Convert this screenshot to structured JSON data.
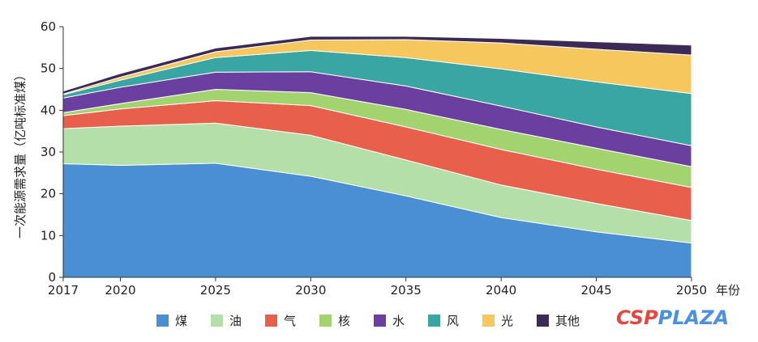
{
  "chart_data": {
    "type": "area",
    "stacked": true,
    "x": [
      2017,
      2020,
      2025,
      2030,
      2035,
      2040,
      2045,
      2050
    ],
    "x_tick_labels": [
      "2017",
      "2020",
      "2025",
      "2030",
      "2035",
      "2040",
      "2045",
      "2050"
    ],
    "xlabel": "年份",
    "ylabel": "一次能源需求量（亿吨标准煤）",
    "ylim": [
      0,
      60
    ],
    "y_ticks": [
      0,
      10,
      20,
      30,
      40,
      50,
      60
    ],
    "legend_position": "bottom",
    "series": [
      {
        "name": "煤",
        "color": "#4a8fd4",
        "values": [
          27.2,
          26.8,
          27.3,
          24.2,
          19.5,
          14.3,
          10.9,
          8.2
        ]
      },
      {
        "name": "油",
        "color": "#b5dfa8",
        "values": [
          8.4,
          9.4,
          9.6,
          9.8,
          8.6,
          7.8,
          6.8,
          5.4
        ]
      },
      {
        "name": "气",
        "color": "#e8604c",
        "values": [
          3.1,
          4.1,
          5.4,
          7.1,
          7.9,
          8.5,
          8.2,
          7.9
        ]
      },
      {
        "name": "核",
        "color": "#a3d36e",
        "values": [
          0.7,
          1.3,
          2.7,
          3.1,
          4.2,
          4.8,
          5.0,
          5.0
        ]
      },
      {
        "name": "水",
        "color": "#6a3fa0",
        "values": [
          3.5,
          3.9,
          4.1,
          5.0,
          5.6,
          5.6,
          5.1,
          5.0
        ]
      },
      {
        "name": "风",
        "color": "#3aa6a3",
        "values": [
          0.8,
          1.7,
          3.5,
          5.1,
          6.8,
          8.9,
          10.8,
          12.5
        ]
      },
      {
        "name": "光",
        "color": "#f5c75d",
        "values": [
          0.2,
          0.7,
          1.4,
          2.5,
          4.3,
          6.2,
          7.8,
          9.2
        ]
      },
      {
        "name": "其他",
        "color": "#3b2a55",
        "values": [
          0.7,
          0.9,
          0.9,
          0.9,
          0.8,
          1.1,
          1.8,
          2.4
        ]
      }
    ]
  },
  "watermark": {
    "text_red": "CSP",
    "text_blue": "PLAZA",
    "color_red": "#e8453c",
    "color_blue": "#4a90e2"
  }
}
